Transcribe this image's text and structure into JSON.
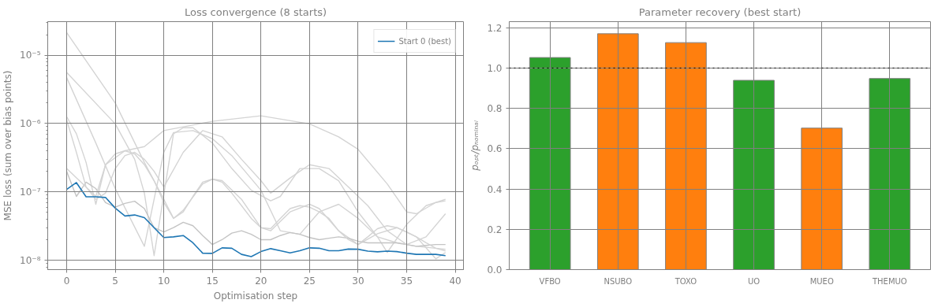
{
  "chart_data": [
    {
      "type": "line",
      "title": "Loss convergence (8 starts)",
      "xlabel": "Optimisation step",
      "ylabel": "MSE loss (sum over bias points)",
      "log": "y",
      "grid": true,
      "legend": "top right",
      "xlim": [
        -1.95,
        40.85
      ],
      "xticks": [
        0,
        5,
        10,
        15,
        20,
        25,
        30,
        35,
        40
      ],
      "ylim": [
        7.3e-09,
        3.1e-05
      ],
      "yticks": [
        {
          "value": 1e-08,
          "label": "10⁻⁸"
        },
        {
          "value": 1e-07,
          "label": "10⁻⁷"
        },
        {
          "value": 1e-06,
          "label": "10⁻⁶"
        },
        {
          "value": 1e-05,
          "label": "10⁻⁵"
        }
      ],
      "series": [
        {
          "color": "#d4d4d4",
          "x": [
            0,
            5,
            8,
            10,
            11,
            12,
            14,
            15,
            16,
            18,
            20,
            21,
            23,
            25,
            26,
            28,
            30,
            32,
            34,
            36,
            38,
            39
          ],
          "values": [
            2.15e-05,
            2e-06,
            2.7e-07,
            7.8e-08,
            4.1e-08,
            5.4e-08,
            1.31e-07,
            1.54e-07,
            1.46e-07,
            7.8e-08,
            3e-08,
            2.7e-08,
            5.1e-08,
            6.6e-08,
            5.7e-08,
            2.7e-08,
            1.7e-08,
            2.45e-08,
            3e-08,
            2.2e-08,
            1.05e-08,
            1.3e-08
          ]
        },
        {
          "color": "#d4d4d4",
          "x": [
            0,
            5,
            7,
            8,
            9,
            11,
            12,
            13,
            15,
            17,
            19,
            21,
            22,
            24,
            26,
            28,
            30,
            32,
            33,
            35,
            37,
            39
          ],
          "values": [
            5.6e-06,
            9.9e-07,
            3e-07,
            9.6e-08,
            1.17e-08,
            7.1e-07,
            8.7e-07,
            8.7e-07,
            5.2e-07,
            2.2e-07,
            1.06e-07,
            7.4e-08,
            8.6e-08,
            2.2e-07,
            2.2e-07,
            1.46e-07,
            5.1e-08,
            2.2e-08,
            1.3e-08,
            3.35e-08,
            6.3e-08,
            7.8e-08
          ]
        },
        {
          "color": "#d4d4d4",
          "x": [
            0,
            3,
            5,
            8,
            10,
            11,
            13,
            15,
            17,
            20,
            22,
            24,
            26,
            28,
            30,
            32,
            34,
            36,
            39
          ],
          "values": [
            4.7e-06,
            5.2e-07,
            1.12e-07,
            1.6e-08,
            3.8e-07,
            7.4e-07,
            7.9e-07,
            6e-07,
            3.4e-07,
            1.06e-07,
            2.7e-08,
            2.4e-08,
            5.1e-08,
            6.6e-08,
            4.1e-08,
            2.2e-08,
            1.8e-08,
            1.6e-08,
            1.45e-08
          ]
        },
        {
          "color": "#d4d4d4",
          "x": [
            0,
            1,
            2,
            3,
            4,
            6,
            8,
            10,
            15,
            20,
            25,
            28,
            30,
            33,
            35,
            36,
            38,
            39
          ],
          "values": [
            1.26e-06,
            7.1e-07,
            2.7e-07,
            6.6e-08,
            2.5e-07,
            4e-07,
            4.6e-07,
            7.9e-07,
            1.08e-06,
            1.3e-06,
            9.9e-07,
            6.4e-07,
            4.2e-07,
            1.31e-07,
            5.1e-08,
            4.8e-08,
            7e-08,
            7.4e-08
          ]
        },
        {
          "color": "#c4c4c4",
          "x": [
            0,
            1,
            2,
            3,
            4,
            5,
            6,
            7,
            8,
            9,
            10,
            11,
            12,
            13,
            14,
            15,
            16,
            17,
            18,
            19,
            20,
            21,
            22,
            23,
            24,
            25,
            26,
            27,
            28,
            29,
            30,
            31,
            32,
            33,
            34,
            35,
            36,
            37,
            38,
            39
          ],
          "values": [
            2e-07,
            8.6e-08,
            1.39e-07,
            1.12e-07,
            7e-08,
            6e-08,
            6.8e-08,
            7.3e-08,
            5.7e-08,
            3e-08,
            2.6e-08,
            3e-08,
            3.6e-08,
            3.2e-08,
            2.3e-08,
            1.7e-08,
            2e-08,
            2.5e-08,
            2.7e-08,
            2.4e-08,
            2e-08,
            2e-08,
            2.3e-08,
            2.55e-08,
            2.4e-08,
            2.15e-08,
            2e-08,
            2.1e-08,
            2.2e-08,
            2.1e-08,
            1.9e-08,
            1.8e-08,
            1.8e-08,
            1.8e-08,
            1.8e-08,
            1.7e-08,
            1.6e-08,
            1.65e-08,
            1.7e-08,
            1.7e-08
          ]
        },
        {
          "color": "#d4d4d4",
          "x": [
            0,
            3,
            4,
            5,
            6,
            7,
            8,
            9,
            10,
            11,
            12,
            13,
            14,
            15,
            16,
            17,
            18,
            19,
            20,
            21,
            22,
            23,
            24,
            25,
            26,
            27,
            28,
            29,
            30,
            31,
            32,
            33,
            34,
            35,
            36,
            37,
            38,
            39
          ],
          "values": [
            2.2e-07,
            8.6e-08,
            2.5e-07,
            3.6e-07,
            4e-07,
            3.6e-07,
            2.5e-07,
            1.46e-07,
            7e-08,
            4.1e-08,
            5.1e-08,
            8.6e-08,
            1.39e-07,
            1.54e-07,
            1.39e-07,
            9.6e-08,
            6.3e-08,
            4.1e-08,
            3e-08,
            2.9e-08,
            4.1e-08,
            5.7e-08,
            6.3e-08,
            6e-08,
            5.1e-08,
            4.1e-08,
            2.7e-08,
            2e-08,
            1.7e-08,
            2.2e-08,
            2.9e-08,
            3.2e-08,
            3e-08,
            2.6e-08,
            2.2e-08,
            1.8e-08,
            1.5e-08,
            1.37e-08
          ]
        },
        {
          "color": "#d4d4d4",
          "x": [
            0,
            1,
            2,
            3,
            4,
            5,
            6,
            7,
            8,
            9,
            10,
            12,
            14,
            16,
            18,
            20,
            21,
            23,
            25,
            27,
            29,
            31,
            33,
            35,
            37,
            39
          ],
          "values": [
            1.13e-06,
            3.8e-07,
            1.18e-07,
            7.8e-08,
            9.6e-08,
            2.2e-07,
            3.4e-07,
            3.8e-07,
            3e-07,
            2e-07,
            1.18e-07,
            3.8e-07,
            7.9e-07,
            6.4e-07,
            3e-07,
            1.46e-07,
            9.6e-08,
            1.6e-07,
            2.5e-07,
            2.2e-07,
            1.18e-07,
            6.3e-08,
            2.7e-08,
            1.7e-08,
            2.2e-08,
            4.8e-08
          ]
        },
        {
          "name": "Start 0 (best)",
          "color": "#1f77b4",
          "x": [
            0,
            1,
            2,
            3,
            4,
            5,
            6,
            7,
            8,
            9,
            10,
            11,
            12,
            13,
            14,
            15,
            16,
            17,
            18,
            19,
            20,
            21,
            22,
            23,
            24,
            25,
            26,
            27,
            28,
            29,
            30,
            31,
            32,
            33,
            34,
            35,
            36,
            37,
            38,
            39
          ],
          "values": [
            1.09e-07,
            1.37e-07,
            8.5e-08,
            8.5e-08,
            8.3e-08,
            5.8e-08,
            4.45e-08,
            4.6e-08,
            4.2e-08,
            3e-08,
            2.15e-08,
            2.2e-08,
            2.3e-08,
            1.8e-08,
            1.27e-08,
            1.26e-08,
            1.52e-08,
            1.5e-08,
            1.22e-08,
            1.13e-08,
            1.34e-08,
            1.48e-08,
            1.38e-08,
            1.28e-08,
            1.38e-08,
            1.52e-08,
            1.5e-08,
            1.38e-08,
            1.38e-08,
            1.46e-08,
            1.45e-08,
            1.36e-08,
            1.33e-08,
            1.36e-08,
            1.34e-08,
            1.27e-08,
            1.22e-08,
            1.22e-08,
            1.22e-08,
            1.17e-08
          ]
        }
      ]
    },
    {
      "type": "bar",
      "title": "Parameter recovery (best start)",
      "ylabel": "pₒₚₜ/pₙₒₘᵢₙₐₗ",
      "grid": true,
      "categories": [
        "VFBO",
        "NSUBO",
        "TOXO",
        "UO",
        "MUEO",
        "THEMUO"
      ],
      "values": [
        1.052,
        1.17,
        1.126,
        0.939,
        0.702,
        0.948
      ],
      "colors": [
        "#2ca02c",
        "#ff7f0e",
        "#ff7f0e",
        "#2ca02c",
        "#ff7f0e",
        "#2ca02c"
      ],
      "ylim": [
        0,
        1.23
      ],
      "yticks": [
        {
          "value": 0,
          "label": "0.0"
        },
        0.2,
        0.4,
        0.6,
        0.8,
        {
          "value": 1,
          "label": "1.0"
        },
        1.2
      ],
      "ref_lines": [
        {
          "axis": "y",
          "value": 1,
          "color": "#000000",
          "line_style": "dotted"
        }
      ]
    }
  ]
}
